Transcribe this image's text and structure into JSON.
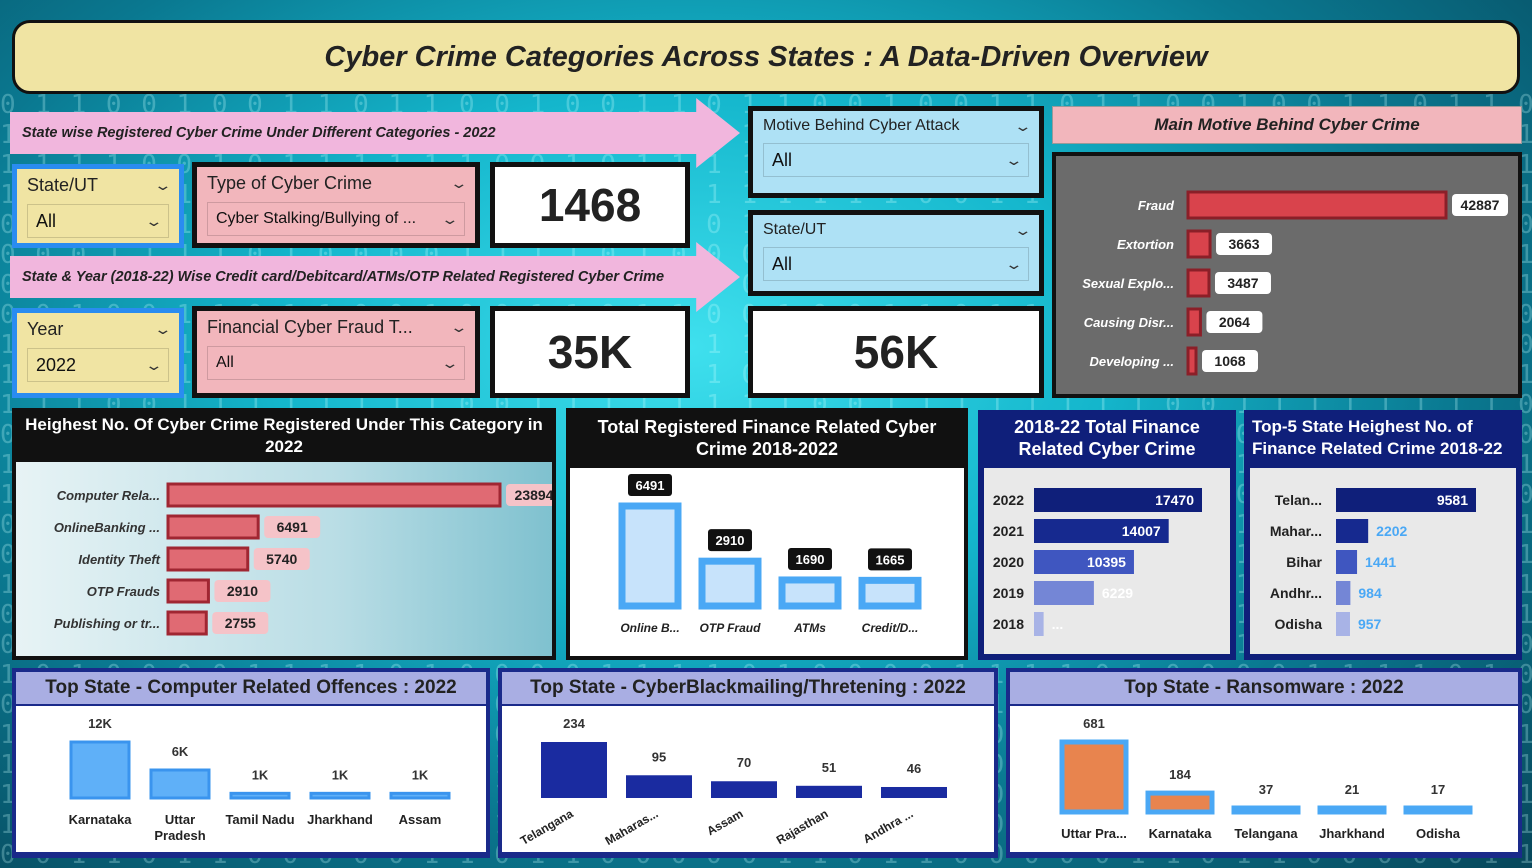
{
  "title": "Cyber Crime Categories Across States : A Data-Driven Overview",
  "arrows": {
    "top": "State wise Registered Cyber Crime Under Different Categories - 2022",
    "bottom": "State & Year (2018-22) Wise Credit card/Debitcard/ATMs/OTP Related Registered Cyber Crime"
  },
  "slicers": {
    "state1": {
      "label": "State/UT",
      "value": "All"
    },
    "type": {
      "label": "Type of Cyber Crime",
      "value": "Cyber Stalking/Bullying of ..."
    },
    "year": {
      "label": "Year",
      "value": "2022"
    },
    "fin_type": {
      "label": "Financial Cyber Fraud T...",
      "value": "All"
    },
    "motive": {
      "label": "Motive Behind Cyber Attack",
      "value": "All"
    },
    "state2": {
      "label": "State/UT",
      "value": "All"
    }
  },
  "cards": {
    "card1": "1468",
    "card2": "35K",
    "card3": "56K"
  },
  "colors": {
    "accent_red": "#d9434c",
    "navy": "#0f1f7a",
    "light_blue": "#4aa8f5",
    "orange": "#e8844e"
  },
  "icons": {
    "dropdown": "chevron-down-icon",
    "expand": "chevron-up-icon"
  },
  "chart_data": [
    {
      "id": "motive",
      "type": "bar",
      "title": "Main Motive Behind Cyber Crime",
      "categories": [
        "Fraud",
        "Extortion",
        "Sexual Explo...",
        "Causing Disr...",
        "Developing ..."
      ],
      "values": [
        42887,
        3663,
        3487,
        2064,
        1068
      ],
      "labels": [
        "42887",
        "3663",
        "3487",
        "2064",
        "1068"
      ]
    },
    {
      "id": "category2022",
      "type": "bar",
      "title": "Heighest No. Of Cyber Crime Registered Under This Category in 2022",
      "categories": [
        "Computer Rela...",
        "OnlineBanking ...",
        "Identity Theft",
        "OTP Frauds",
        "Publishing or tr..."
      ],
      "values": [
        23894,
        6491,
        5740,
        2910,
        2755
      ],
      "labels": [
        "23894",
        "6491",
        "5740",
        "2910",
        "2755"
      ]
    },
    {
      "id": "finance_total",
      "type": "bar",
      "title": "Total Registered Finance Related Cyber Crime 2018-2022",
      "categories": [
        "Online B...",
        "OTP Fraud",
        "ATMs",
        "Credit/D..."
      ],
      "values": [
        6491,
        2910,
        1690,
        1665
      ],
      "labels": [
        "6491",
        "2910",
        "1690",
        "1665"
      ]
    },
    {
      "id": "finance_years",
      "type": "bar",
      "title": "2018-22 Total Finance Related Cyber Crime",
      "categories": [
        "2022",
        "2021",
        "2020",
        "2019",
        "2018"
      ],
      "values": [
        17470,
        14007,
        10395,
        6229,
        1000
      ],
      "labels": [
        "17470",
        "14007",
        "10395",
        "6229",
        "..."
      ]
    },
    {
      "id": "top5_finance",
      "type": "bar",
      "title": "Top-5 State Heighest No. of Finance Related Crime 2018-22",
      "categories": [
        "Telan...",
        "Mahar...",
        "Bihar",
        "Andhr...",
        "Odisha"
      ],
      "values": [
        9581,
        2202,
        1441,
        984,
        957
      ],
      "labels": [
        "9581",
        "2202",
        "1441",
        "984",
        "957"
      ]
    },
    {
      "id": "computer_offences",
      "type": "bar",
      "title": "Top State - Computer Related Offences : 2022",
      "categories": [
        "Karnataka",
        "Uttar Pradesh",
        "Tamil Nadu",
        "Jharkhand",
        "Assam"
      ],
      "values": [
        12000,
        6000,
        1000,
        1000,
        1000
      ],
      "labels": [
        "12K",
        "6K",
        "1K",
        "1K",
        "1K"
      ]
    },
    {
      "id": "blackmailing",
      "type": "bar",
      "title": "Top State - CyberBlackmailing/Thretening : 2022",
      "categories": [
        "Telangana",
        "Maharas...",
        "Assam",
        "Rajasthan",
        "Andhra ..."
      ],
      "values": [
        234,
        95,
        70,
        51,
        46
      ],
      "labels": [
        "234",
        "95",
        "70",
        "51",
        "46"
      ]
    },
    {
      "id": "ransomware",
      "type": "bar",
      "title": "Top State - Ransomware : 2022",
      "categories": [
        "Uttar Pra...",
        "Karnataka",
        "Telangana",
        "Jharkhand",
        "Odisha"
      ],
      "values": [
        681,
        184,
        37,
        21,
        17
      ],
      "labels": [
        "681",
        "184",
        "37",
        "21",
        "17"
      ]
    }
  ]
}
